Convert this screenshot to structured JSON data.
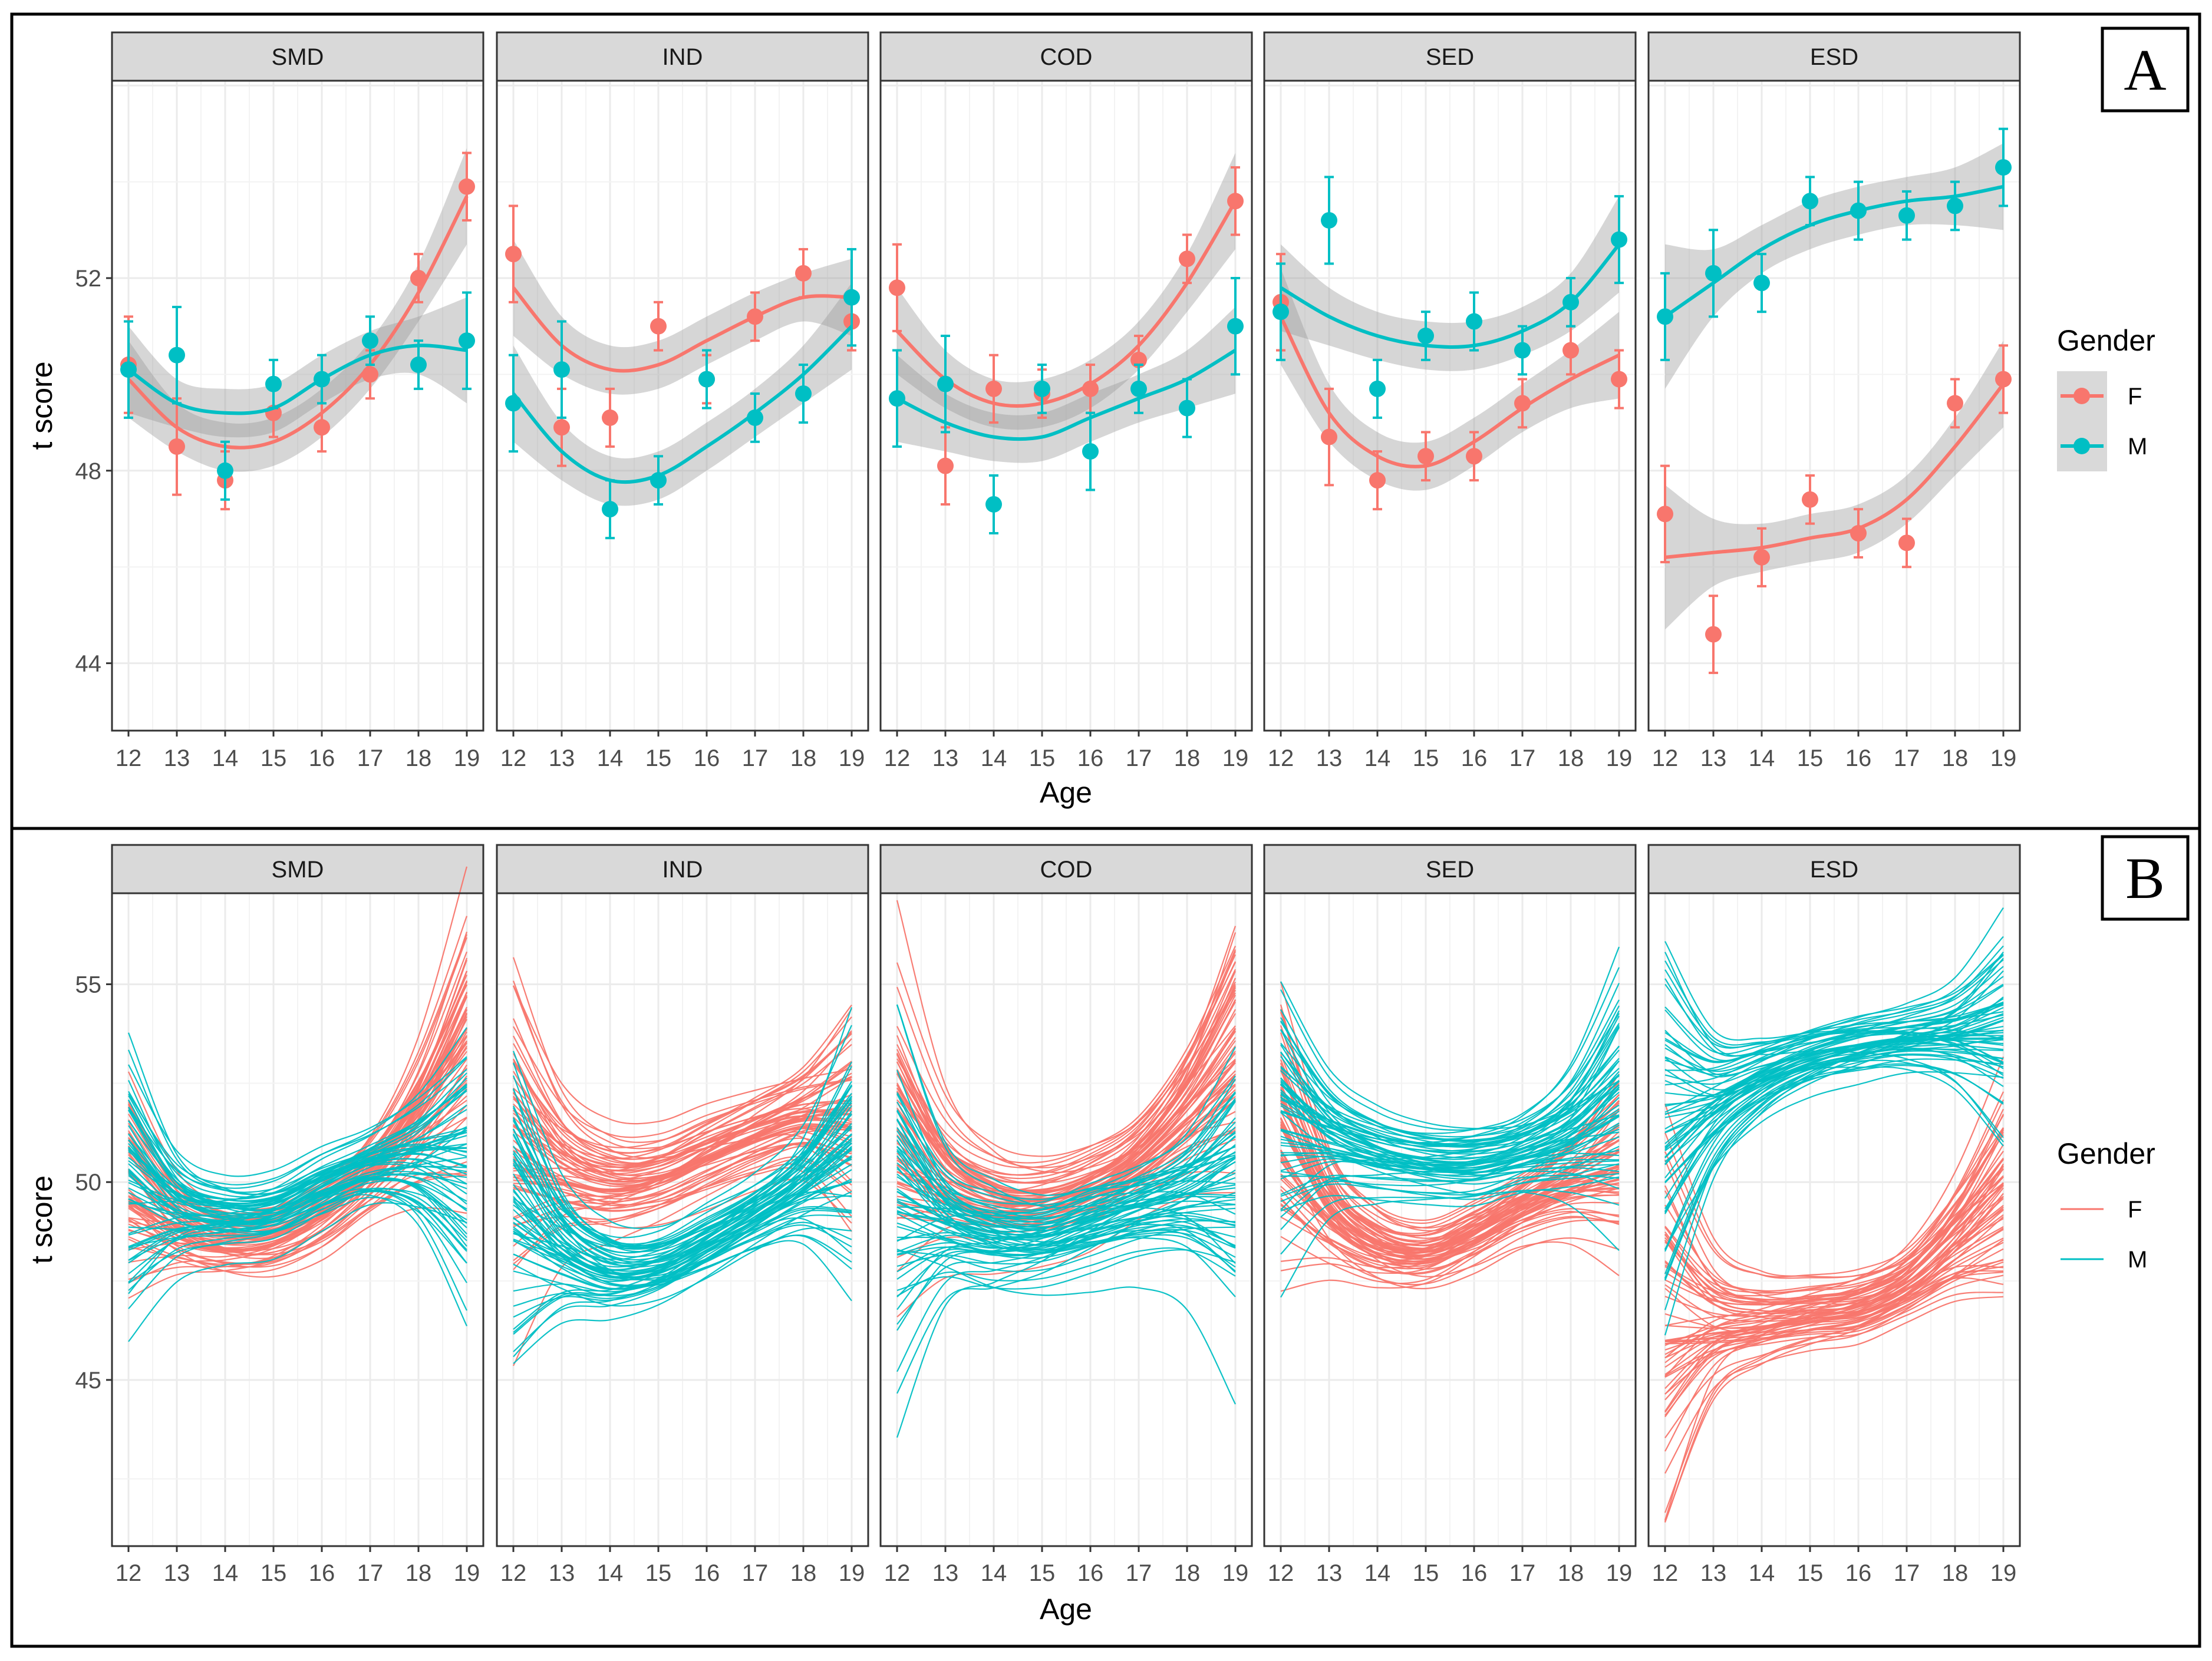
{
  "colors": {
    "F": "#F8766D",
    "M": "#00BFC4",
    "ribbon": "#999999",
    "strip": "#D9D9D9",
    "grid": "#EBEBEB"
  },
  "chart_data": [
    {
      "id": "A",
      "type": "scatter",
      "panel_letter": "A",
      "description_type": "point means with error bars and smoothed loess curves with confidence ribbons, faceted by domain",
      "xlabel": "Age",
      "ylabel": "t score",
      "x": [
        12,
        13,
        14,
        15,
        16,
        17,
        18,
        19
      ],
      "xticks": [
        "12",
        "13",
        "14",
        "15",
        "16",
        "17",
        "18",
        "19"
      ],
      "ylim": [
        42.6,
        56.1
      ],
      "yticks": [
        44,
        48,
        52
      ],
      "ytick_labels": [
        "44",
        "48",
        "52"
      ],
      "legend": {
        "title": "Gender",
        "entries": [
          "F",
          "M"
        ],
        "placement": "right"
      },
      "facets": [
        {
          "name": "SMD",
          "series": [
            {
              "name": "F",
              "values": [
                50.2,
                48.5,
                47.8,
                49.2,
                48.9,
                50.0,
                52.0,
                53.9
              ],
              "err": [
                1.0,
                1.0,
                0.6,
                0.5,
                0.5,
                0.5,
                0.5,
                0.7
              ],
              "smooth": [
                49.9,
                48.9,
                48.5,
                48.6,
                49.2,
                50.2,
                51.7,
                53.7
              ],
              "band": [
                0.8,
                0.5,
                0.5,
                0.5,
                0.5,
                0.5,
                0.6,
                1.0
              ]
            },
            {
              "name": "M",
              "values": [
                50.1,
                50.4,
                48.0,
                49.8,
                49.9,
                50.7,
                50.2,
                50.7
              ],
              "err": [
                1.0,
                1.0,
                0.6,
                0.5,
                0.5,
                0.5,
                0.5,
                1.0
              ],
              "smooth": [
                50.1,
                49.4,
                49.2,
                49.3,
                49.9,
                50.4,
                50.6,
                50.5
              ],
              "band": [
                0.9,
                0.5,
                0.5,
                0.5,
                0.5,
                0.5,
                0.6,
                1.1
              ]
            }
          ]
        },
        {
          "name": "IND",
          "series": [
            {
              "name": "F",
              "values": [
                52.5,
                48.9,
                49.1,
                51.0,
                49.9,
                51.2,
                52.1,
                51.1
              ],
              "err": [
                1.0,
                0.8,
                0.6,
                0.5,
                0.5,
                0.5,
                0.5,
                0.6
              ],
              "smooth": [
                51.8,
                50.6,
                50.1,
                50.2,
                50.7,
                51.2,
                51.6,
                51.6
              ],
              "band": [
                1.0,
                0.6,
                0.5,
                0.5,
                0.5,
                0.5,
                0.5,
                0.8
              ]
            },
            {
              "name": "M",
              "values": [
                49.4,
                50.1,
                47.2,
                47.8,
                49.9,
                49.1,
                49.6,
                51.6
              ],
              "err": [
                1.0,
                1.0,
                0.6,
                0.5,
                0.6,
                0.5,
                0.6,
                1.0
              ],
              "smooth": [
                49.6,
                48.4,
                47.8,
                47.9,
                48.5,
                49.2,
                50.0,
                51.0
              ],
              "band": [
                1.0,
                0.6,
                0.5,
                0.5,
                0.5,
                0.5,
                0.6,
                0.9
              ]
            }
          ]
        },
        {
          "name": "COD",
          "series": [
            {
              "name": "F",
              "values": [
                51.8,
                48.1,
                49.7,
                49.6,
                49.7,
                50.3,
                52.4,
                53.6
              ],
              "err": [
                0.9,
                0.8,
                0.7,
                0.5,
                0.5,
                0.5,
                0.5,
                0.7
              ],
              "smooth": [
                50.9,
                49.9,
                49.4,
                49.4,
                49.8,
                50.6,
                51.9,
                53.6
              ],
              "band": [
                0.9,
                0.6,
                0.5,
                0.5,
                0.5,
                0.5,
                0.6,
                1.0
              ]
            },
            {
              "name": "M",
              "values": [
                49.5,
                49.8,
                47.3,
                49.7,
                48.4,
                49.7,
                49.3,
                51.0
              ],
              "err": [
                1.0,
                1.0,
                0.6,
                0.5,
                0.8,
                0.5,
                0.6,
                1.0
              ],
              "smooth": [
                49.5,
                49.0,
                48.7,
                48.7,
                49.1,
                49.5,
                49.9,
                50.5
              ],
              "band": [
                0.9,
                0.6,
                0.5,
                0.5,
                0.5,
                0.5,
                0.6,
                0.9
              ]
            }
          ]
        },
        {
          "name": "SED",
          "series": [
            {
              "name": "F",
              "values": [
                51.5,
                48.7,
                47.8,
                48.3,
                48.3,
                49.4,
                50.5,
                49.9
              ],
              "err": [
                1.0,
                1.0,
                0.6,
                0.5,
                0.5,
                0.5,
                0.5,
                0.6
              ],
              "smooth": [
                51.2,
                49.2,
                48.3,
                48.1,
                48.6,
                49.3,
                49.9,
                50.4
              ],
              "band": [
                1.0,
                0.6,
                0.5,
                0.5,
                0.5,
                0.5,
                0.6,
                0.9
              ]
            },
            {
              "name": "M",
              "values": [
                51.3,
                53.2,
                49.7,
                50.8,
                51.1,
                50.5,
                51.5,
                52.8
              ],
              "err": [
                1.0,
                0.9,
                0.6,
                0.5,
                0.6,
                0.5,
                0.5,
                0.9
              ],
              "smooth": [
                51.8,
                51.2,
                50.8,
                50.6,
                50.6,
                50.9,
                51.5,
                52.7
              ],
              "band": [
                0.9,
                0.6,
                0.5,
                0.5,
                0.5,
                0.5,
                0.6,
                1.0
              ]
            }
          ]
        },
        {
          "name": "ESD",
          "series": [
            {
              "name": "F",
              "values": [
                47.1,
                44.6,
                46.2,
                47.4,
                46.7,
                46.5,
                49.4,
                49.9
              ],
              "err": [
                1.0,
                0.8,
                0.6,
                0.5,
                0.5,
                0.5,
                0.5,
                0.7
              ],
              "smooth": [
                46.2,
                46.3,
                46.4,
                46.6,
                46.8,
                47.4,
                48.5,
                49.8
              ],
              "band": [
                1.5,
                0.7,
                0.5,
                0.5,
                0.5,
                0.5,
                0.6,
                0.9
              ]
            },
            {
              "name": "M",
              "values": [
                51.2,
                52.1,
                51.9,
                53.6,
                53.4,
                53.3,
                53.5,
                54.3
              ],
              "err": [
                0.9,
                0.9,
                0.6,
                0.5,
                0.6,
                0.5,
                0.5,
                0.8
              ],
              "smooth": [
                51.2,
                51.9,
                52.6,
                53.1,
                53.4,
                53.6,
                53.7,
                53.9
              ],
              "band": [
                1.5,
                0.7,
                0.5,
                0.5,
                0.5,
                0.5,
                0.6,
                0.9
              ]
            }
          ]
        }
      ]
    },
    {
      "id": "B",
      "type": "line",
      "panel_letter": "B",
      "description_type": "bootstrap replicate smoothed trajectories per gender, faceted by domain",
      "xlabel": "Age",
      "ylabel": "t score",
      "x": [
        12,
        13,
        14,
        15,
        16,
        17,
        18,
        19
      ],
      "xticks": [
        "12",
        "13",
        "14",
        "15",
        "16",
        "17",
        "18",
        "19"
      ],
      "ylim": [
        40.8,
        57.3
      ],
      "yticks": [
        45,
        50,
        55
      ],
      "ytick_labels": [
        "45",
        "50",
        "55"
      ],
      "legend": {
        "title": "Gender",
        "entries": [
          "F",
          "M"
        ],
        "placement": "right"
      },
      "replicates_per_group": 60,
      "facets": [
        {
          "name": "SMD",
          "series": [
            {
              "name": "F",
              "mean": [
                49.9,
                48.9,
                48.5,
                48.6,
                49.2,
                50.2,
                51.7,
                53.7
              ],
              "spread": [
                1.5,
                0.8,
                0.6,
                0.6,
                0.6,
                0.6,
                1.0,
                1.8
              ]
            },
            {
              "name": "M",
              "mean": [
                50.1,
                49.4,
                49.2,
                49.3,
                49.9,
                50.4,
                50.6,
                50.5
              ],
              "spread": [
                2.0,
                0.9,
                0.6,
                0.6,
                0.6,
                0.6,
                1.0,
                1.9
              ]
            }
          ]
        },
        {
          "name": "IND",
          "series": [
            {
              "name": "F",
              "mean": [
                51.8,
                50.6,
                50.1,
                50.2,
                50.7,
                51.2,
                51.6,
                51.6
              ],
              "spread": [
                2.0,
                1.0,
                0.7,
                0.6,
                0.6,
                0.6,
                0.7,
                1.3
              ]
            },
            {
              "name": "M",
              "mean": [
                49.6,
                48.4,
                47.8,
                47.9,
                48.5,
                49.2,
                50.0,
                51.0
              ],
              "spread": [
                2.0,
                1.0,
                0.7,
                0.6,
                0.6,
                0.6,
                0.8,
                1.6
              ]
            }
          ]
        },
        {
          "name": "COD",
          "series": [
            {
              "name": "F",
              "mean": [
                50.9,
                49.9,
                49.4,
                49.4,
                49.8,
                50.6,
                51.9,
                53.6
              ],
              "spread": [
                2.0,
                1.0,
                0.7,
                0.6,
                0.6,
                0.6,
                0.9,
                1.6
              ]
            },
            {
              "name": "M",
              "mean": [
                49.5,
                49.0,
                48.7,
                48.7,
                49.1,
                49.5,
                49.9,
                50.5
              ],
              "spread": [
                2.2,
                1.0,
                0.8,
                0.7,
                0.7,
                0.7,
                0.9,
                1.6
              ]
            }
          ]
        },
        {
          "name": "SED",
          "series": [
            {
              "name": "F",
              "mean": [
                51.2,
                49.2,
                48.3,
                48.1,
                48.6,
                49.3,
                49.9,
                50.4
              ],
              "spread": [
                2.0,
                1.0,
                0.7,
                0.6,
                0.6,
                0.6,
                0.8,
                1.3
              ]
            },
            {
              "name": "M",
              "mean": [
                51.8,
                51.2,
                50.8,
                50.6,
                50.6,
                50.9,
                51.5,
                52.7
              ],
              "spread": [
                2.0,
                1.0,
                0.7,
                0.6,
                0.6,
                0.6,
                0.9,
                1.6
              ]
            }
          ]
        },
        {
          "name": "ESD",
          "series": [
            {
              "name": "F",
              "mean": [
                46.2,
                46.3,
                46.4,
                46.6,
                46.8,
                47.4,
                48.5,
                49.8
              ],
              "spread": [
                2.6,
                1.1,
                0.7,
                0.6,
                0.6,
                0.6,
                0.9,
                1.5
              ]
            },
            {
              "name": "M",
              "mean": [
                51.2,
                51.9,
                52.6,
                53.1,
                53.4,
                53.6,
                53.7,
                53.9
              ],
              "spread": [
                2.4,
                1.1,
                0.7,
                0.6,
                0.6,
                0.6,
                0.8,
                1.4
              ]
            }
          ]
        }
      ]
    }
  ]
}
